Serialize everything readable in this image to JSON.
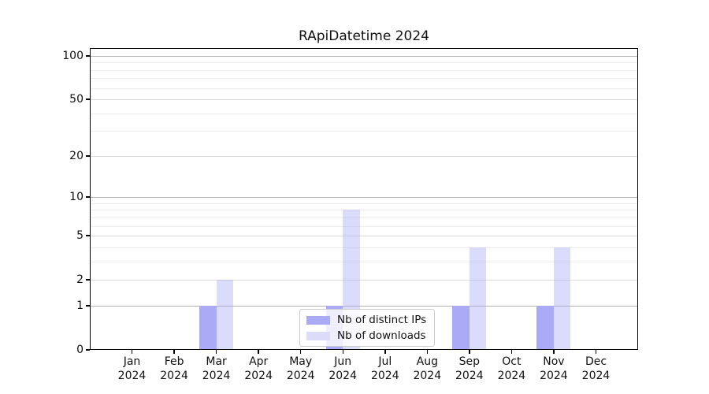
{
  "chart_data": {
    "type": "bar",
    "title": "RApiDatetime 2024",
    "categories": [
      "Jan",
      "Feb",
      "Mar",
      "Apr",
      "May",
      "Jun",
      "Jul",
      "Aug",
      "Sep",
      "Oct",
      "Nov",
      "Dec"
    ],
    "category_year": "2024",
    "series": [
      {
        "name": "Nb of distinct IPs",
        "color": "#aaaaf6",
        "values": [
          0,
          0,
          1,
          0,
          0,
          1,
          0,
          0,
          1,
          0,
          1,
          0
        ]
      },
      {
        "name": "Nb of downloads",
        "color": "#dcdcf8",
        "fill_rgba": "rgba(170,170,245,0.42)",
        "values": [
          0,
          0,
          2,
          0,
          0,
          8,
          0,
          0,
          4,
          0,
          4,
          0
        ]
      }
    ],
    "yscale": "log1p",
    "ylim": [
      0,
      113
    ],
    "ytick_labels": [
      0,
      1,
      2,
      5,
      10,
      20,
      50,
      100
    ],
    "ytick_major": [
      1,
      10,
      100
    ],
    "ytick_minor": [
      3,
      4,
      6,
      7,
      8,
      9,
      30,
      40,
      60,
      70,
      80,
      90
    ],
    "grid": true,
    "legend_position": "lower center",
    "colors": {
      "grid_major": "#b2b2b2",
      "grid_labeled": "#dadada",
      "grid_minor": "#ededed",
      "spine": "#000000",
      "background": "#ffffff"
    }
  }
}
